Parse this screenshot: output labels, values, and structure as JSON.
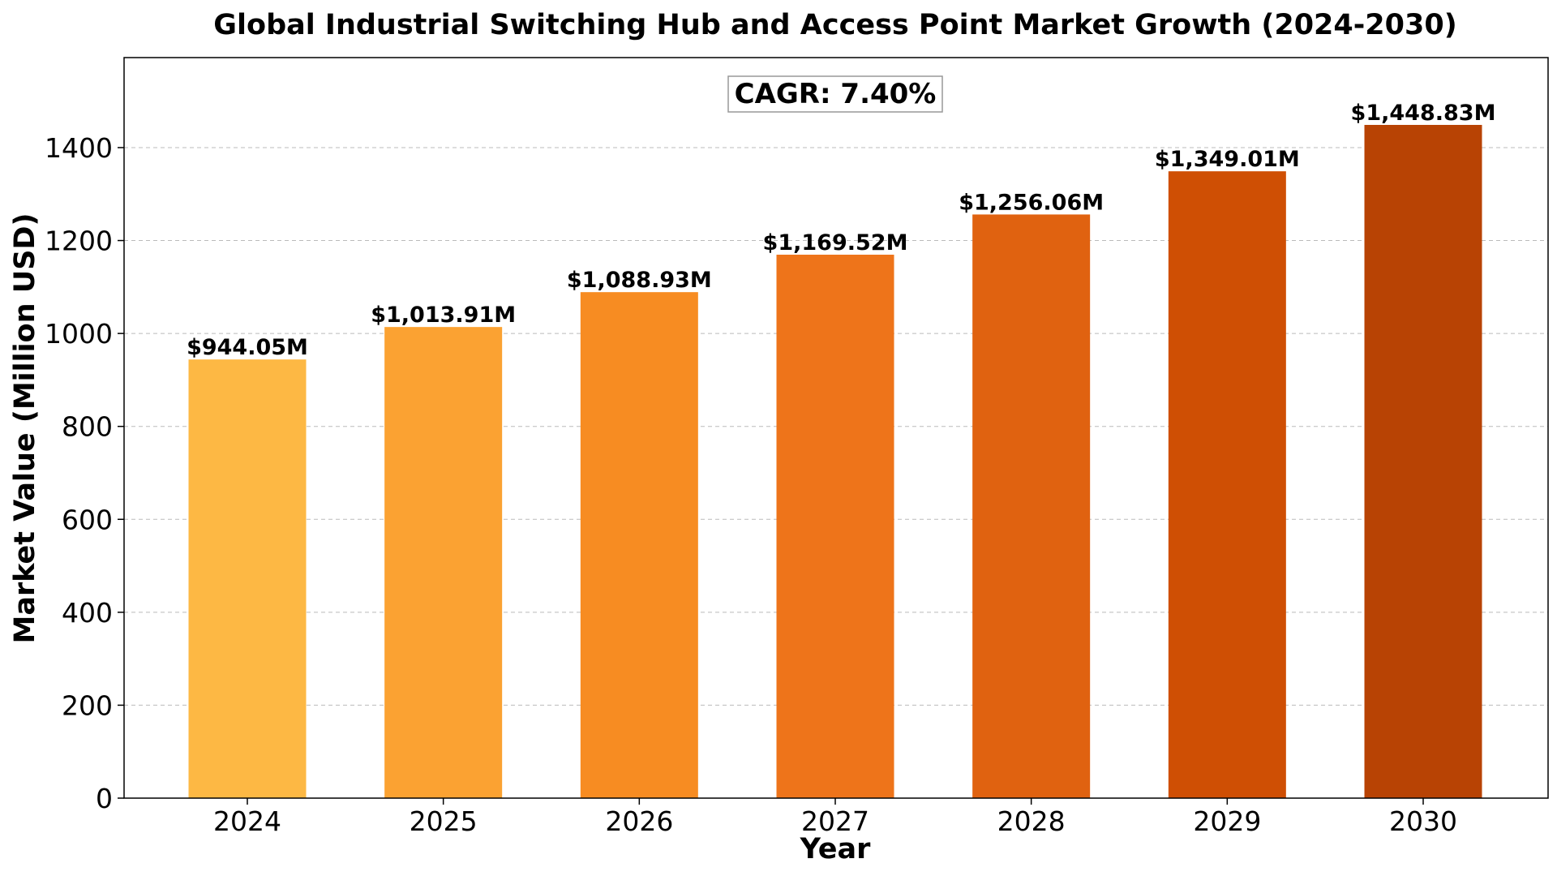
{
  "chart_data": {
    "type": "bar",
    "title": "Global Industrial Switching Hub and Access Point Market Growth (2024-2030)",
    "xlabel": "Year",
    "ylabel": "Market Value (Million USD)",
    "categories": [
      "2024",
      "2025",
      "2026",
      "2027",
      "2028",
      "2029",
      "2030"
    ],
    "values": [
      944.05,
      1013.91,
      1088.93,
      1169.52,
      1256.06,
      1349.01,
      1448.83
    ],
    "data_labels": [
      "$944.05M",
      "$1,013.91M",
      "$1,088.93M",
      "$1,169.52M",
      "$1,256.06M",
      "$1,349.01M",
      "$1,448.83M"
    ],
    "bar_colors": [
      "#fdb844",
      "#fba232",
      "#f78c22",
      "#ee741a",
      "#e06210",
      "#cf4f04",
      "#b84304"
    ],
    "ylim": [
      0,
      1593.7
    ],
    "yticks": [
      0,
      200,
      400,
      600,
      800,
      1000,
      1200,
      1400
    ],
    "grid": true,
    "annotation": "CAGR: 7.40%"
  }
}
